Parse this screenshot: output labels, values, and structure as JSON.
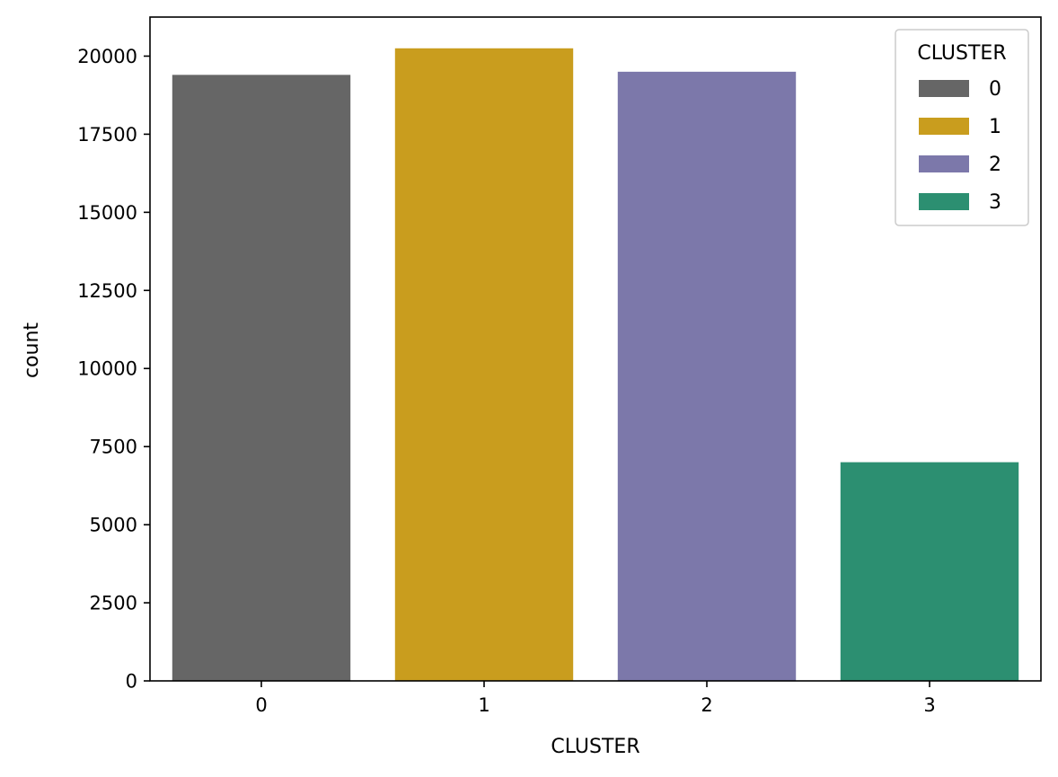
{
  "chart_data": {
    "type": "bar",
    "categories": [
      "0",
      "1",
      "2",
      "3"
    ],
    "values": [
      19400,
      20250,
      19500,
      7000
    ],
    "colors": [
      "#666666",
      "#c99d1e",
      "#7c78aa",
      "#2c8f71"
    ],
    "xlabel": "CLUSTER",
    "ylabel": "count",
    "ylim": [
      0,
      21250
    ],
    "yticks": [
      0,
      2500,
      5000,
      7500,
      10000,
      12500,
      15000,
      17500,
      20000
    ],
    "ytick_labels": [
      "0",
      "2500",
      "5000",
      "7500",
      "10000",
      "12500",
      "15000",
      "17500",
      "20000"
    ],
    "grid": false,
    "legend": {
      "title": "CLUSTER",
      "placement": "top-right",
      "entries": [
        "0",
        "1",
        "2",
        "3"
      ]
    }
  }
}
